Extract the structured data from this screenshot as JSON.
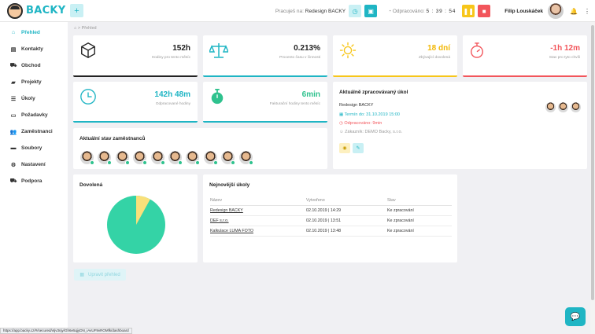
{
  "app": {
    "name": "BACKY"
  },
  "topbar": {
    "working_label": "Pracuješ na:",
    "working_task": "Redesign BACKY",
    "time_label": "Odpracováno:",
    "time_value": "5 : 39 : 54",
    "user_name": "Filip Louskáček"
  },
  "sidebar": {
    "items": [
      {
        "label": "Přehled",
        "icon": "home-icon"
      },
      {
        "label": "Kontakty",
        "icon": "contact-icon"
      },
      {
        "label": "Obchod",
        "icon": "cart-icon"
      },
      {
        "label": "Projekty",
        "icon": "briefcase-icon"
      },
      {
        "label": "Úkoly",
        "icon": "list-icon"
      },
      {
        "label": "Požadavky",
        "icon": "inbox-icon"
      },
      {
        "label": "Zaměstnanci",
        "icon": "users-icon"
      },
      {
        "label": "Soubory",
        "icon": "folder-icon"
      },
      {
        "label": "Nastavení",
        "icon": "gear-icon"
      },
      {
        "label": "Podpora",
        "icon": "truck-icon"
      }
    ]
  },
  "breadcrumb": {
    "page": "Přehled"
  },
  "stats": [
    {
      "value": "152h",
      "label": "Hodiny pro tento měsíc"
    },
    {
      "value": "0.213%",
      "label": "Procento času v činnosti"
    },
    {
      "value": "18 dní",
      "label": "Zbývající dovolená"
    },
    {
      "value": "-1h 12m",
      "label": "Stav pro tyto chvíli"
    },
    {
      "value": "142h 48m",
      "label": "Odpracované hodiny"
    },
    {
      "value": "6min",
      "label": "Fakturační hodiny tento měsíc"
    }
  ],
  "employees": {
    "title": "Aktuální stav zaměstnanců",
    "count": 10
  },
  "current_task": {
    "title": "Aktuálně zpracovávaný úkol",
    "name": "Redesign BACKY",
    "deadline": "Termín do: 31.10.2019 15:00",
    "worked": "Odpracováno: 9min",
    "customer": "Zákazník: DEMO Backy, s.r.o."
  },
  "vacation": {
    "title": "Dovolená",
    "used_fraction": 0.08
  },
  "tasks": {
    "title": "Nejnovější úkoly",
    "columns": [
      "Název",
      "Vytvořeno",
      "Stav"
    ],
    "rows": [
      {
        "name": "Redesign BACKY",
        "created": "02.10.2019 | 14:29",
        "status": "Ke zpracování"
      },
      {
        "name": "DEF s.r.o.",
        "created": "02.10.2019 | 13:51",
        "status": "Ke zpracování"
      },
      {
        "name": "Kalkulace LUMA FOTO",
        "created": "02.10.2019 | 13:48",
        "status": "Ke zpracování"
      }
    ]
  },
  "edit_button": "Upravit přehled",
  "status_url": "https://app.backy.cz/#/secured/vtjv3njy/Gh6e5qjyDN_iAvUF9vROMfk/dashboard",
  "colors": {
    "accent": "#1fb5c4",
    "green": "#2fc28e",
    "yellow": "#f7c61a",
    "red": "#f2555b"
  }
}
